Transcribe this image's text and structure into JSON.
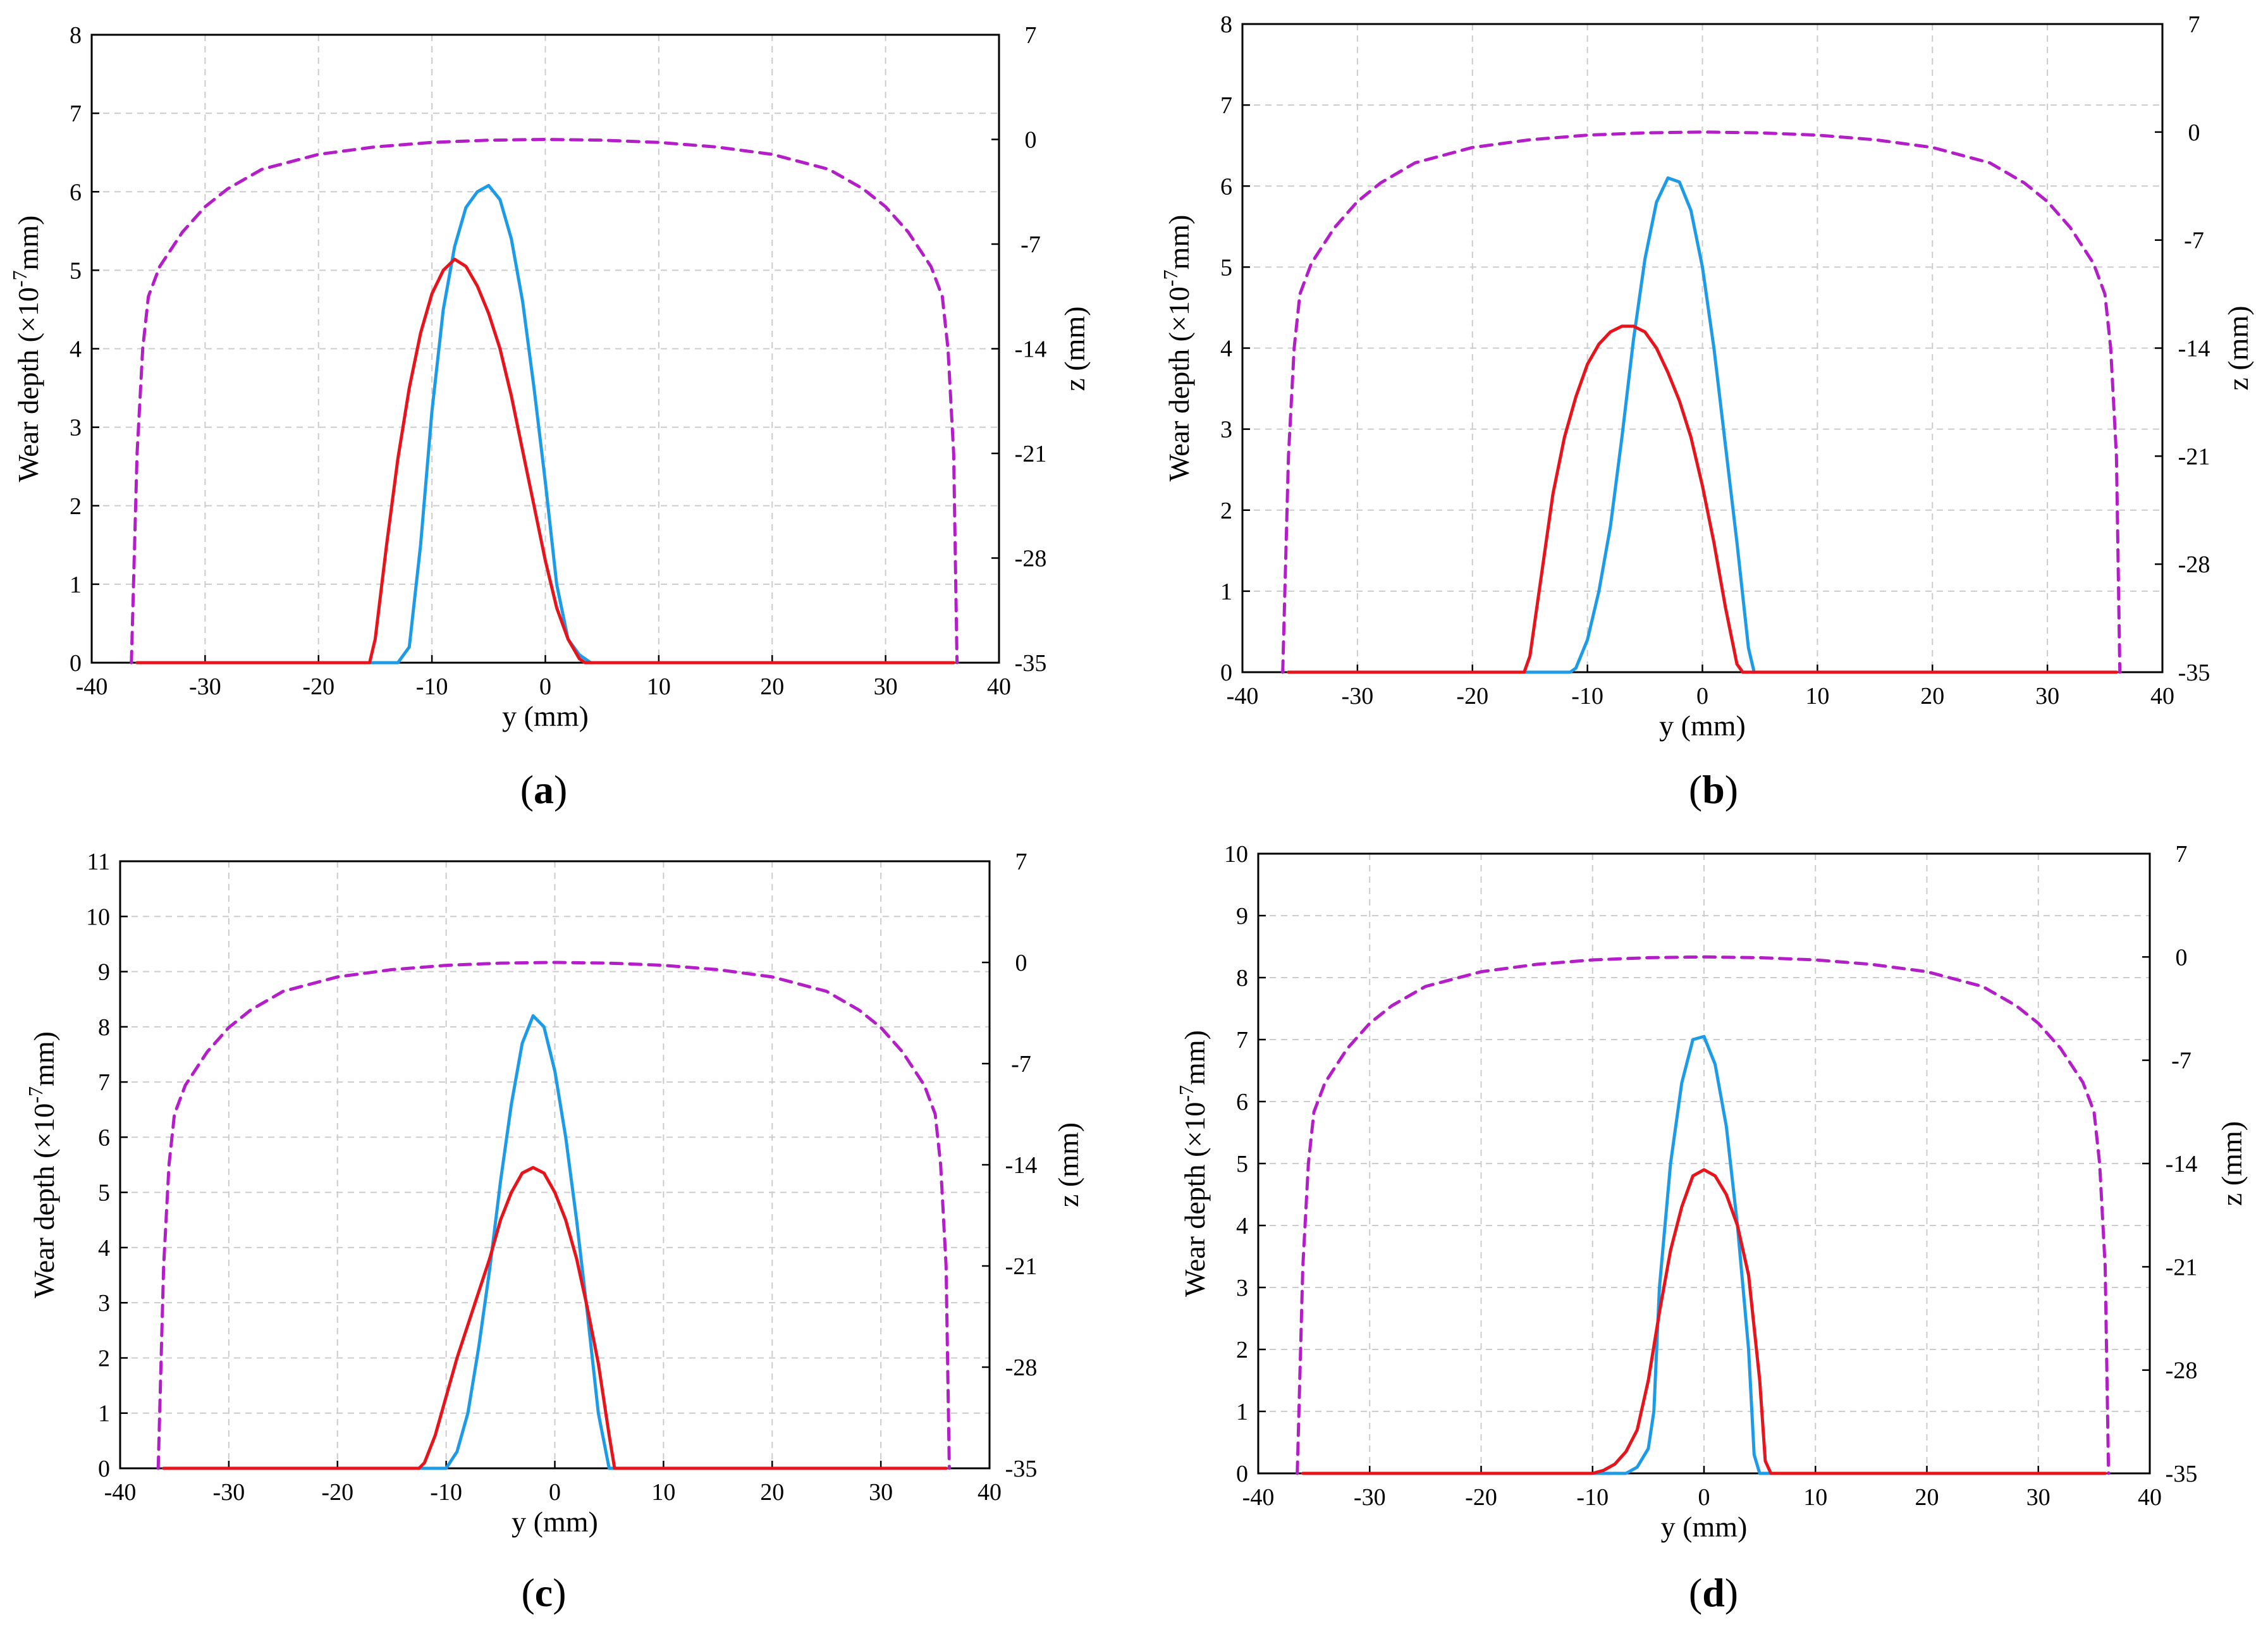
{
  "colors": {
    "blue": "#1e9be6",
    "red": "#e8141c",
    "magenta": "#b41ec8",
    "grid": "#cccccc"
  },
  "chart_data": [
    {
      "type": "line",
      "label_letter": "a",
      "xlabel": "y (mm)",
      "ylabel_prefix": "Wear depth (×10",
      "ylabel_sup": "-7",
      "ylabel_suffix": "mm)",
      "y2label": "z (mm)",
      "xlim": [
        -40,
        40
      ],
      "ylim": [
        0,
        8
      ],
      "y2lim": [
        -35,
        7
      ],
      "xticks": [
        -40,
        -30,
        -20,
        -10,
        0,
        10,
        20,
        30,
        40
      ],
      "xtick_labels": [
        "-40",
        "-30",
        "-20",
        "-10",
        "0",
        "10",
        "20",
        "30",
        "40"
      ],
      "yticks": [
        0,
        1,
        2,
        3,
        4,
        5,
        6,
        7,
        8
      ],
      "ytick_labels": [
        "0",
        "1",
        "2",
        "3",
        "4",
        "5",
        "6",
        "7",
        "8"
      ],
      "y2ticks": [
        -35,
        -28,
        -21,
        -14,
        -7,
        0,
        7
      ],
      "y2tick_labels": [
        "-35",
        "-28",
        "-21",
        "-14",
        "-7",
        "0",
        "7"
      ],
      "series": [
        {
          "name": "blue",
          "style": "solid",
          "axis": "left",
          "x": [
            -36,
            -13,
            -12,
            -11,
            -10,
            -9,
            -8,
            -7,
            -6,
            -5,
            -4,
            -3,
            -2,
            -1,
            0,
            1,
            2,
            3,
            4,
            36
          ],
          "y": [
            0,
            0,
            0.2,
            1.5,
            3.2,
            4.5,
            5.3,
            5.8,
            6.0,
            6.08,
            5.9,
            5.4,
            4.6,
            3.5,
            2.3,
            1.0,
            0.3,
            0.1,
            0,
            0
          ]
        },
        {
          "name": "red",
          "style": "solid",
          "axis": "left",
          "x": [
            -36,
            -15.5,
            -15,
            -14,
            -13,
            -12,
            -11,
            -10,
            -9,
            -8,
            -7,
            -6,
            -5,
            -4,
            -3,
            -2,
            -1,
            0,
            1,
            2,
            3,
            3.5,
            36
          ],
          "y": [
            0,
            0,
            0.3,
            1.5,
            2.6,
            3.5,
            4.2,
            4.7,
            5.0,
            5.14,
            5.05,
            4.8,
            4.45,
            4.0,
            3.4,
            2.7,
            2.0,
            1.3,
            0.7,
            0.3,
            0.05,
            0,
            0
          ]
        },
        {
          "name": "magenta",
          "style": "dashed",
          "axis": "right",
          "x": [
            -36.5,
            -36,
            -35.5,
            -35,
            -34,
            -32,
            -30,
            -28,
            -25,
            -20,
            -15,
            -10,
            -5,
            0,
            5,
            10,
            15,
            20,
            25,
            28,
            30,
            32,
            34,
            35,
            35.5,
            36,
            36.3
          ],
          "y": [
            -35,
            -21,
            -14,
            -10.5,
            -8.5,
            -6.2,
            -4.5,
            -3.3,
            -2.0,
            -1.0,
            -0.5,
            -0.2,
            -0.05,
            0,
            -0.05,
            -0.2,
            -0.5,
            -1.0,
            -2.0,
            -3.3,
            -4.5,
            -6.2,
            -8.5,
            -10.5,
            -14,
            -21,
            -35
          ]
        }
      ]
    },
    {
      "type": "line",
      "label_letter": "b",
      "xlabel": "y (mm)",
      "ylabel_prefix": "Wear depth (×10",
      "ylabel_sup": "-7",
      "ylabel_suffix": "mm)",
      "y2label": "z (mm)",
      "xlim": [
        -40,
        40
      ],
      "ylim": [
        0,
        8
      ],
      "y2lim": [
        -35,
        7
      ],
      "xticks": [
        -40,
        -30,
        -20,
        -10,
        0,
        10,
        20,
        30,
        40
      ],
      "xtick_labels": [
        "-40",
        "-30",
        "-20",
        "-10",
        "0",
        "10",
        "20",
        "30",
        "40"
      ],
      "yticks": [
        0,
        1,
        2,
        3,
        4,
        5,
        6,
        7,
        8
      ],
      "ytick_labels": [
        "0",
        "1",
        "2",
        "3",
        "4",
        "5",
        "6",
        "7",
        "8"
      ],
      "y2ticks": [
        -35,
        -28,
        -21,
        -14,
        -7,
        0,
        7
      ],
      "y2tick_labels": [
        "-35",
        "-28",
        "-21",
        "-14",
        "-7",
        "0",
        "7"
      ],
      "series": [
        {
          "name": "blue",
          "style": "solid",
          "axis": "left",
          "x": [
            -36,
            -11.5,
            -11,
            -10,
            -9,
            -8,
            -7,
            -6,
            -5,
            -4,
            -3,
            -2,
            -1,
            0,
            1,
            2,
            3,
            4,
            4.5,
            36
          ],
          "y": [
            0,
            0,
            0.05,
            0.4,
            1.0,
            1.8,
            2.9,
            4.1,
            5.1,
            5.8,
            6.1,
            6.05,
            5.7,
            5.0,
            4.0,
            2.8,
            1.6,
            0.3,
            0,
            0
          ]
        },
        {
          "name": "red",
          "style": "solid",
          "axis": "left",
          "x": [
            -36,
            -15.5,
            -15,
            -14,
            -13,
            -12,
            -11,
            -10,
            -9,
            -8,
            -7,
            -6,
            -5,
            -4,
            -3,
            -2,
            -1,
            0,
            1,
            2,
            3,
            3.5,
            36
          ],
          "y": [
            0,
            0,
            0.2,
            1.2,
            2.2,
            2.9,
            3.4,
            3.8,
            4.05,
            4.2,
            4.27,
            4.27,
            4.2,
            4.0,
            3.7,
            3.35,
            2.9,
            2.3,
            1.6,
            0.8,
            0.1,
            0,
            0
          ]
        },
        {
          "name": "magenta",
          "style": "dashed",
          "axis": "right",
          "x": [
            -36.5,
            -36,
            -35.5,
            -35,
            -34,
            -32,
            -30,
            -28,
            -25,
            -20,
            -15,
            -10,
            -5,
            0,
            5,
            10,
            15,
            20,
            25,
            28,
            30,
            32,
            34,
            35,
            35.5,
            36,
            36.3
          ],
          "y": [
            -35,
            -21,
            -14,
            -10.5,
            -8.5,
            -6.2,
            -4.5,
            -3.3,
            -2.0,
            -1.0,
            -0.5,
            -0.2,
            -0.05,
            0,
            -0.05,
            -0.2,
            -0.5,
            -1.0,
            -2.0,
            -3.3,
            -4.5,
            -6.2,
            -8.5,
            -10.5,
            -14,
            -21,
            -35
          ]
        }
      ]
    },
    {
      "type": "line",
      "label_letter": "c",
      "xlabel": "y (mm)",
      "ylabel_prefix": "Wear depth (×10",
      "ylabel_sup": "-7",
      "ylabel_suffix": "mm)",
      "y2label": "z (mm)",
      "xlim": [
        -40,
        40
      ],
      "ylim": [
        0,
        11
      ],
      "y2lim": [
        -35,
        7
      ],
      "xticks": [
        -40,
        -30,
        -20,
        -10,
        0,
        10,
        20,
        30,
        40
      ],
      "xtick_labels": [
        "-40",
        "-30",
        "-20",
        "-10",
        "0",
        "10",
        "20",
        "30",
        "40"
      ],
      "yticks": [
        0,
        1,
        2,
        3,
        4,
        5,
        6,
        7,
        8,
        9,
        10,
        11
      ],
      "ytick_labels": [
        "0",
        "1",
        "2",
        "3",
        "4",
        "5",
        "6",
        "7",
        "8",
        "9",
        "10",
        "11"
      ],
      "y2ticks": [
        -35,
        -28,
        -21,
        -14,
        -7,
        0,
        7
      ],
      "y2tick_labels": [
        "-35",
        "-28",
        "-21",
        "-14",
        "-7",
        "0",
        "7"
      ],
      "series": [
        {
          "name": "blue",
          "style": "solid",
          "axis": "left",
          "x": [
            -36,
            -10,
            -9,
            -8,
            -7,
            -6,
            -5,
            -4,
            -3,
            -2,
            -1,
            0,
            1,
            2,
            3,
            4,
            5,
            36
          ],
          "y": [
            0,
            0,
            0.3,
            1.0,
            2.2,
            3.6,
            5.2,
            6.6,
            7.7,
            8.2,
            8.0,
            7.2,
            6.0,
            4.5,
            2.8,
            1.0,
            0,
            0
          ]
        },
        {
          "name": "red",
          "style": "solid",
          "axis": "left",
          "x": [
            -36,
            -12.5,
            -12,
            -11,
            -10,
            -9,
            -8,
            -7,
            -6,
            -5,
            -4,
            -3,
            -2,
            -1,
            0,
            1,
            2,
            3,
            4,
            5,
            5.5,
            36
          ],
          "y": [
            0,
            0,
            0.1,
            0.6,
            1.3,
            2.0,
            2.6,
            3.2,
            3.8,
            4.5,
            5.0,
            5.35,
            5.45,
            5.35,
            5.0,
            4.5,
            3.8,
            2.9,
            1.9,
            0.6,
            0,
            0
          ]
        },
        {
          "name": "magenta",
          "style": "dashed",
          "axis": "right",
          "x": [
            -36.5,
            -36,
            -35.5,
            -35,
            -34,
            -32,
            -30,
            -28,
            -25,
            -20,
            -15,
            -10,
            -5,
            0,
            5,
            10,
            15,
            20,
            25,
            28,
            30,
            32,
            34,
            35,
            35.5,
            36,
            36.3
          ],
          "y": [
            -35,
            -21,
            -14,
            -10.5,
            -8.5,
            -6.2,
            -4.5,
            -3.3,
            -2.0,
            -1.0,
            -0.5,
            -0.2,
            -0.05,
            0,
            -0.05,
            -0.2,
            -0.5,
            -1.0,
            -2.0,
            -3.3,
            -4.5,
            -6.2,
            -8.5,
            -10.5,
            -14,
            -21,
            -35
          ]
        }
      ]
    },
    {
      "type": "line",
      "label_letter": "d",
      "xlabel": "y (mm)",
      "ylabel_prefix": "Wear depth (×10",
      "ylabel_sup": "-7",
      "ylabel_suffix": "mm)",
      "y2label": "z (mm)",
      "xlim": [
        -40,
        40
      ],
      "ylim": [
        0,
        10
      ],
      "y2lim": [
        -35,
        7
      ],
      "xticks": [
        -40,
        -30,
        -20,
        -10,
        0,
        10,
        20,
        30,
        40
      ],
      "xtick_labels": [
        "-40",
        "-30",
        "-20",
        "-10",
        "0",
        "10",
        "20",
        "30",
        "40"
      ],
      "yticks": [
        0,
        1,
        2,
        3,
        4,
        5,
        6,
        7,
        8,
        9,
        10
      ],
      "ytick_labels": [
        "0",
        "1",
        "2",
        "3",
        "4",
        "5",
        "6",
        "7",
        "8",
        "9",
        "10"
      ],
      "y2ticks": [
        -35,
        -28,
        -21,
        -14,
        -7,
        0,
        7
      ],
      "y2tick_labels": [
        "-35",
        "-28",
        "-21",
        "-14",
        "-7",
        "0",
        "7"
      ],
      "series": [
        {
          "name": "blue",
          "style": "solid",
          "axis": "left",
          "x": [
            -36,
            -7,
            -6,
            -5,
            -4.5,
            -4,
            -3,
            -2,
            -1,
            0,
            1,
            2,
            3,
            4,
            4.5,
            5,
            36
          ],
          "y": [
            0,
            0,
            0.1,
            0.4,
            1.0,
            3.0,
            5.0,
            6.3,
            7.0,
            7.05,
            6.6,
            5.6,
            4.0,
            2.0,
            0.3,
            0,
            0
          ]
        },
        {
          "name": "red",
          "style": "solid",
          "axis": "left",
          "x": [
            -36,
            -10,
            -9,
            -8,
            -7,
            -6,
            -5,
            -4,
            -3,
            -2,
            -1,
            0,
            1,
            2,
            3,
            4,
            5,
            5.5,
            6,
            36
          ],
          "y": [
            0,
            0,
            0.05,
            0.15,
            0.35,
            0.7,
            1.5,
            2.6,
            3.6,
            4.3,
            4.8,
            4.9,
            4.8,
            4.5,
            4.0,
            3.2,
            1.5,
            0.2,
            0,
            0
          ]
        },
        {
          "name": "magenta",
          "style": "dashed",
          "axis": "right",
          "x": [
            -36.5,
            -36,
            -35.5,
            -35,
            -34,
            -32,
            -30,
            -28,
            -25,
            -20,
            -15,
            -10,
            -5,
            0,
            5,
            10,
            15,
            20,
            25,
            28,
            30,
            32,
            34,
            35,
            35.5,
            36,
            36.3
          ],
          "y": [
            -35,
            -21,
            -14,
            -10.5,
            -8.5,
            -6.2,
            -4.5,
            -3.3,
            -2.0,
            -1.0,
            -0.5,
            -0.2,
            -0.05,
            0,
            -0.05,
            -0.2,
            -0.5,
            -1.0,
            -2.0,
            -3.3,
            -4.5,
            -6.2,
            -8.5,
            -10.5,
            -14,
            -21,
            -35
          ]
        }
      ]
    }
  ]
}
